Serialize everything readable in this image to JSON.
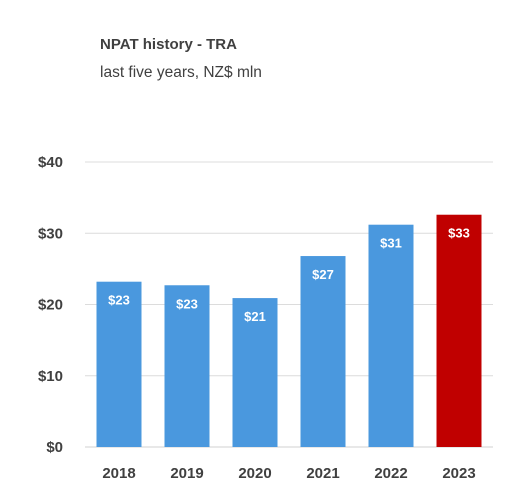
{
  "chart_data": {
    "type": "bar",
    "title": "NPAT history - TRA",
    "subtitle": "last five years, NZ$ mln",
    "categories": [
      "2018",
      "2019",
      "2020",
      "2021",
      "2022",
      "2023"
    ],
    "values": [
      23.2,
      22.7,
      20.9,
      26.8,
      31.2,
      32.6
    ],
    "data_labels": [
      "$23",
      "$23",
      "$21",
      "$27",
      "$31",
      "$33"
    ],
    "bar_colors": [
      "#4a98de",
      "#4a98de",
      "#4a98de",
      "#4a98de",
      "#4a98de",
      "#c00000"
    ],
    "ylim": [
      0,
      40
    ],
    "y_ticks": [
      0,
      10,
      20,
      30,
      40
    ],
    "y_tick_labels": [
      "$0",
      "$10",
      "$20",
      "$30",
      "$40"
    ],
    "grid": true,
    "legend": "none",
    "xlabel": "",
    "ylabel": ""
  }
}
